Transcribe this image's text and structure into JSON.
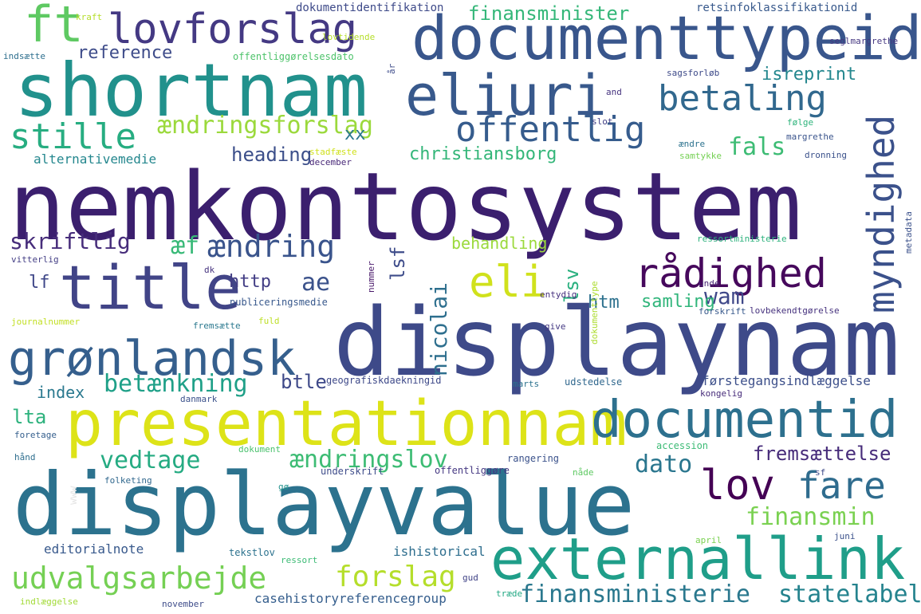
{
  "words": [
    {
      "text": "nemkontosystem",
      "color": "#3b1f6e"
    },
    {
      "text": "displaynam",
      "color": "#3e4a89"
    },
    {
      "text": "displayvalue",
      "color": "#2c728e"
    },
    {
      "text": "shortnam",
      "color": "#21918c"
    },
    {
      "text": "documenttypeid",
      "color": "#39568c"
    },
    {
      "text": "presentationnam",
      "color": "#dde318"
    },
    {
      "text": "title",
      "color": "#414487"
    },
    {
      "text": "externallink",
      "color": "#1f9e89"
    },
    {
      "text": "eliuri",
      "color": "#38598c"
    },
    {
      "text": "documentid",
      "color": "#2d708e"
    },
    {
      "text": "grønlandsk",
      "color": "#355f8d"
    },
    {
      "text": "ft",
      "color": "#5ec962"
    },
    {
      "text": "lovforslag",
      "color": "#443983"
    },
    {
      "text": "eli",
      "color": "#d0e11c"
    },
    {
      "text": "rådighed",
      "color": "#46085c"
    },
    {
      "text": "lov",
      "color": "#440154"
    },
    {
      "text": "fare",
      "color": "#2f6c8e"
    },
    {
      "text": "myndighed",
      "color": "#3b518b"
    },
    {
      "text": "offentlig",
      "color": "#365c8d"
    },
    {
      "text": "betaling",
      "color": "#31688e"
    },
    {
      "text": "stille",
      "color": "#27ad81"
    },
    {
      "text": "udvalgsarbejde",
      "color": "#75d054"
    },
    {
      "text": "ændring",
      "color": "#3a548c"
    },
    {
      "text": "forslag",
      "color": "#b5de2b"
    },
    {
      "text": "finansministerie",
      "color": "#2a788e"
    },
    {
      "text": "statelabel",
      "color": "#25838e"
    },
    {
      "text": "ændringsforslag",
      "color": "#9bd93c"
    },
    {
      "text": "ændringslov",
      "color": "#3dbc74"
    },
    {
      "text": "finansmin",
      "color": "#7ad151"
    },
    {
      "text": "vedtage",
      "color": "#25ab82"
    },
    {
      "text": "betænkning",
      "color": "#1fa088"
    },
    {
      "text": "dato",
      "color": "#2a768e"
    },
    {
      "text": "nicolai",
      "color": "#2e6f8e"
    },
    {
      "text": "fals",
      "color": "#3dbc74"
    },
    {
      "text": "ae",
      "color": "#3b528b"
    },
    {
      "text": "skriftlig",
      "color": "#472d7b"
    },
    {
      "text": "wam",
      "color": "#3f4889"
    },
    {
      "text": "fremsættelse",
      "color": "#472c7a"
    },
    {
      "text": "finansminister",
      "color": "#35b779"
    },
    {
      "text": "æf",
      "color": "#38b977"
    },
    {
      "text": "heading",
      "color": "#3c4f8a"
    },
    {
      "text": "lsf",
      "color": "#3e4c8a"
    },
    {
      "text": "lsv",
      "color": "#2ab07f"
    },
    {
      "text": "lta",
      "color": "#2db27d"
    },
    {
      "text": "btle",
      "color": "#3e4989"
    },
    {
      "text": "isreprint",
      "color": "#24878e"
    },
    {
      "text": "christiansborg",
      "color": "#34b679"
    },
    {
      "text": "xx",
      "color": "#2a778e"
    },
    {
      "text": "reference",
      "color": "#3e4c8a"
    },
    {
      "text": "index",
      "color": "#29788e"
    },
    {
      "text": "http",
      "color": "#433e85"
    },
    {
      "text": "htm",
      "color": "#2d718e"
    },
    {
      "text": "samling",
      "color": "#31b57b"
    },
    {
      "text": "lf",
      "color": "#3f4788"
    },
    {
      "text": "behandling",
      "color": "#9bd93c"
    },
    {
      "text": "førstegangsindlæggelse",
      "color": "#3c4f8a"
    },
    {
      "text": "alternativemedie",
      "color": "#24878e"
    },
    {
      "text": "editorialnote",
      "color": "#38598c"
    },
    {
      "text": "casehistoryreferencegroup",
      "color": "#355e8d"
    },
    {
      "text": "ishistorical",
      "color": "#2e6e8e"
    },
    {
      "text": "dokumentidentifikation",
      "color": "#3e4a89"
    },
    {
      "text": "retsinfoklassifikationid",
      "color": "#38598c"
    },
    {
      "text": "offentliggørelsesdato",
      "color": "#4ec36b"
    },
    {
      "text": "geografiskdaekningid",
      "color": "#3e4989"
    },
    {
      "text": "publiceringsmedie",
      "color": "#38588c"
    },
    {
      "text": "rangering",
      "color": "#3b528b"
    },
    {
      "text": "offentliggøre",
      "color": "#453882"
    },
    {
      "text": "underskrift",
      "color": "#3e4c8a"
    },
    {
      "text": "accession",
      "color": "#3cbb75"
    },
    {
      "text": "udstedelse",
      "color": "#31688e"
    },
    {
      "text": "lovbekendtgørelse",
      "color": "#46327e"
    },
    {
      "text": "ressortministerie",
      "color": "#2db27d"
    },
    {
      "text": "kongelig",
      "color": "#472c7a"
    },
    {
      "text": "tekstlov",
      "color": "#2c728e"
    },
    {
      "text": "journalnummer",
      "color": "#c2df23"
    },
    {
      "text": "seglmargrethe",
      "color": "#453781"
    },
    {
      "text": "lovtidende",
      "color": "#b5de2b"
    },
    {
      "text": "indsætte",
      "color": "#2e6f8e"
    },
    {
      "text": "sagsforløb",
      "color": "#3e4a89"
    },
    {
      "text": "stadfæste",
      "color": "#d0e11c"
    },
    {
      "text": "december",
      "color": "#482878"
    },
    {
      "text": "samtykke",
      "color": "#75d054"
    },
    {
      "text": "følge",
      "color": "#2fb47c"
    },
    {
      "text": "margrethe",
      "color": "#3a548c"
    },
    {
      "text": "dronning",
      "color": "#3b518b"
    },
    {
      "text": "ændre",
      "color": "#2c728e"
    },
    {
      "text": "slot",
      "color": "#424086"
    },
    {
      "text": "and",
      "color": "#46337f"
    },
    {
      "text": "kraft",
      "color": "#b5de2b"
    },
    {
      "text": "metadata",
      "color": "#3b518b"
    },
    {
      "text": "vitterlig",
      "color": "#433e85"
    },
    {
      "text": "fremsætte",
      "color": "#2a788e"
    },
    {
      "text": "fuld",
      "color": "#bddf26"
    },
    {
      "text": "give",
      "color": "#443983"
    },
    {
      "text": "entydig",
      "color": "#46307e"
    },
    {
      "text": "forskrift",
      "color": "#38598c"
    },
    {
      "text": "unde",
      "color": "#482475"
    },
    {
      "text": "dokumenttype",
      "color": "#addc30"
    },
    {
      "text": "nummer",
      "color": "#48186a"
    },
    {
      "text": "dk",
      "color": "#46337f"
    },
    {
      "text": "danmark",
      "color": "#3b518b"
    },
    {
      "text": "marts",
      "color": "#2c728e"
    },
    {
      "text": "foretage",
      "color": "#355f8d"
    },
    {
      "text": "hånd",
      "color": "#2e6e8e"
    },
    {
      "text": "folketing",
      "color": "#31688e"
    },
    {
      "text": "dokument",
      "color": "#4ac16d"
    },
    {
      "text": "www",
      "color": "#e5e5e5"
    },
    {
      "text": "gø",
      "color": "#21918c"
    },
    {
      "text": "nåde",
      "color": "#5ec962"
    },
    {
      "text": "sf",
      "color": "#3e4a89"
    },
    {
      "text": "april",
      "color": "#7ad151"
    },
    {
      "text": "juni",
      "color": "#3b518b"
    },
    {
      "text": "ressort",
      "color": "#3cbb75"
    },
    {
      "text": "gud",
      "color": "#414487"
    },
    {
      "text": "træde",
      "color": "#22a884"
    },
    {
      "text": "indlæggelse",
      "color": "#a2da37"
    },
    {
      "text": "november",
      "color": "#3e4c8a"
    },
    {
      "text": "år",
      "color": "#3e4c8a"
    }
  ]
}
